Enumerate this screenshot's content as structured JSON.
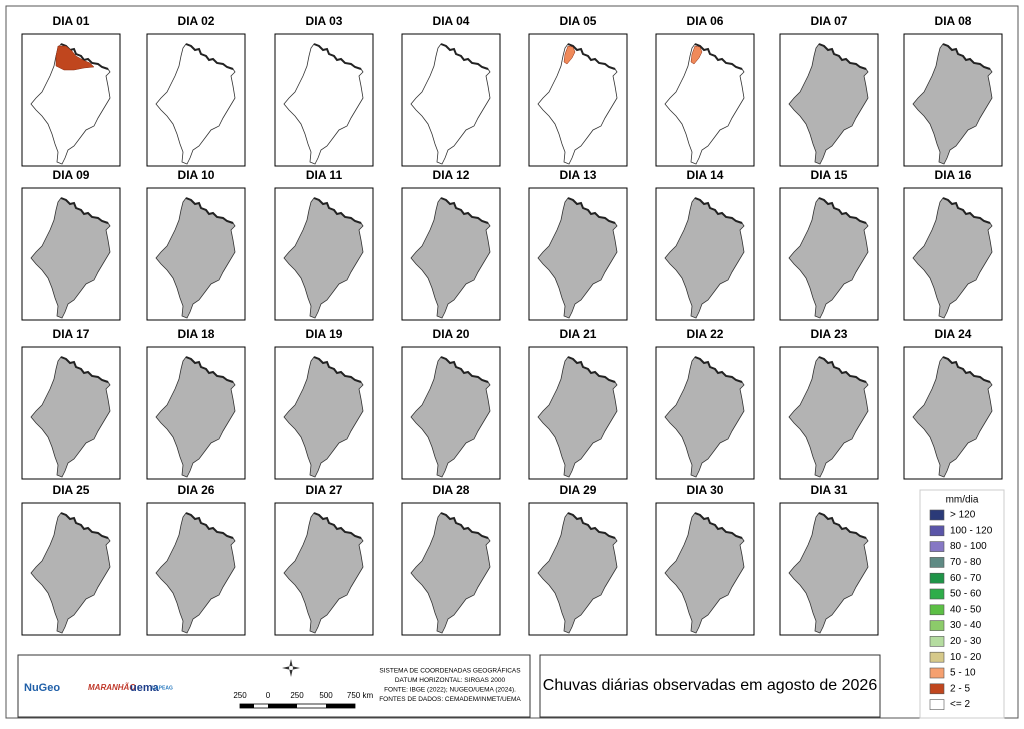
{
  "panels": [
    {
      "label": "DIA 01",
      "fill": "#ffffff",
      "highlight": "#c0461e",
      "highlight_size": "large"
    },
    {
      "label": "DIA 02",
      "fill": "#ffffff"
    },
    {
      "label": "DIA 03",
      "fill": "#ffffff"
    },
    {
      "label": "DIA 04",
      "fill": "#ffffff"
    },
    {
      "label": "DIA 05",
      "fill": "#ffffff",
      "highlight": "#f08a5a",
      "highlight_size": "small"
    },
    {
      "label": "DIA 06",
      "fill": "#ffffff",
      "highlight": "#f08a5a",
      "highlight_size": "small"
    },
    {
      "label": "DIA 07",
      "fill": "#b3b3b3"
    },
    {
      "label": "DIA 08",
      "fill": "#b3b3b3"
    },
    {
      "label": "DIA 09",
      "fill": "#b3b3b3"
    },
    {
      "label": "DIA 10",
      "fill": "#b3b3b3"
    },
    {
      "label": "DIA 11",
      "fill": "#b3b3b3"
    },
    {
      "label": "DIA 12",
      "fill": "#b3b3b3"
    },
    {
      "label": "DIA 13",
      "fill": "#b3b3b3"
    },
    {
      "label": "DIA 14",
      "fill": "#b3b3b3"
    },
    {
      "label": "DIA 15",
      "fill": "#b3b3b3"
    },
    {
      "label": "DIA 16",
      "fill": "#b3b3b3"
    },
    {
      "label": "DIA 17",
      "fill": "#b3b3b3"
    },
    {
      "label": "DIA 18",
      "fill": "#b3b3b3"
    },
    {
      "label": "DIA 19",
      "fill": "#b3b3b3"
    },
    {
      "label": "DIA 20",
      "fill": "#b3b3b3"
    },
    {
      "label": "DIA 21",
      "fill": "#b3b3b3"
    },
    {
      "label": "DIA 22",
      "fill": "#b3b3b3"
    },
    {
      "label": "DIA 23",
      "fill": "#b3b3b3"
    },
    {
      "label": "DIA 24",
      "fill": "#b3b3b3"
    },
    {
      "label": "DIA 25",
      "fill": "#b3b3b3"
    },
    {
      "label": "DIA 26",
      "fill": "#b3b3b3"
    },
    {
      "label": "DIA 27",
      "fill": "#b3b3b3"
    },
    {
      "label": "DIA 28",
      "fill": "#b3b3b3"
    },
    {
      "label": "DIA 29",
      "fill": "#b3b3b3"
    },
    {
      "label": "DIA 30",
      "fill": "#b3b3b3"
    },
    {
      "label": "DIA 31",
      "fill": "#b3b3b3"
    }
  ],
  "legend": {
    "title": "mm/dia",
    "items": [
      {
        "label": "> 120",
        "color": "#2b3a78"
      },
      {
        "label": "100 - 120",
        "color": "#5a55a8"
      },
      {
        "label": "80 - 100",
        "color": "#8678c4"
      },
      {
        "label": "70 - 80",
        "color": "#5f8a84"
      },
      {
        "label": "60 - 70",
        "color": "#1f9448"
      },
      {
        "label": "50 - 60",
        "color": "#2fad4a"
      },
      {
        "label": "40 - 50",
        "color": "#5cbf45"
      },
      {
        "label": "30 - 40",
        "color": "#8ccb6a"
      },
      {
        "label": "20 - 30",
        "color": "#b5dca0"
      },
      {
        "label": "10 - 20",
        "color": "#d6c98a"
      },
      {
        "label": "5 - 10",
        "color": "#f5a070"
      },
      {
        "label": "2 - 5",
        "color": "#c0461e"
      },
      {
        "label": "<= 2",
        "color": "#ffffff"
      }
    ]
  },
  "logos": [
    "NuGeo",
    "MARANHÃO",
    "uema",
    "LAPEAG"
  ],
  "scale_bar": [
    "250",
    "0",
    "250",
    "500",
    "750 km"
  ],
  "info": [
    "SISTEMA DE COORDENADAS GEOGRÁFICAS",
    "DATUM HORIZONTAL: SIRGAS 2000",
    "FONTE: IBGE (2022); NUGEO/UEMA (2024).",
    "FONTES DE DADOS: CEMADEM/INMET/UEMA"
  ],
  "title": "Chuvas diárias observadas em agosto de 2026"
}
